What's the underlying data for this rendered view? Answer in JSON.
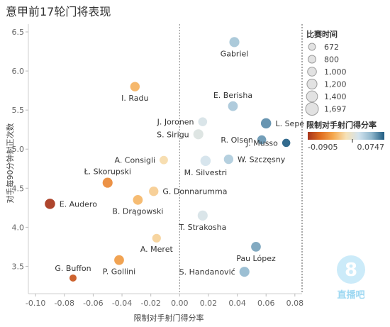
{
  "chart_data": {
    "type": "scatter",
    "title": "意甲前17轮门将表现",
    "xlabel": "限制对手射门得分率",
    "ylabel": "对手每90分钟射正次数",
    "xlim": [
      -0.105,
      0.085
    ],
    "ylim": [
      3.15,
      6.6
    ],
    "x_ticks": [
      -0.1,
      -0.08,
      -0.06,
      -0.04,
      -0.02,
      0.0,
      0.02,
      0.04,
      0.06,
      0.08
    ],
    "x_tick_labels": [
      "-0.10",
      "-0.08",
      "-0.06",
      "-0.04",
      "-0.02",
      "0.00",
      "0.02",
      "0.04",
      "0.06",
      "0.08"
    ],
    "y_ticks": [
      3.5,
      4.0,
      4.5,
      5.0,
      5.5,
      6.0,
      6.5
    ],
    "y_tick_labels": [
      "3.5",
      "4.0",
      "4.5",
      "5.0",
      "5.5",
      "6.0",
      "6.5"
    ],
    "grid": false,
    "reference_line_x": 0.0,
    "size_legend": {
      "title": "比赛时间",
      "placement": "top-right",
      "values": [
        672,
        800,
        1000,
        1200,
        1400,
        1697
      ],
      "labels": [
        "672",
        "800",
        "1,000",
        "1,200",
        "1,400",
        "1,697"
      ]
    },
    "color_legend": {
      "title": "限制对手射门得分率",
      "placement": "right",
      "min_label": "-0.0905",
      "max_label": "0.0747",
      "min": -0.0905,
      "max": 0.0747,
      "colors": [
        "#a6341b",
        "#e06d1f",
        "#f5a94f",
        "#f6e1b6",
        "#d2e3ee",
        "#8fb6cc",
        "#1f5c82"
      ]
    },
    "points": [
      {
        "name": "Gabriel",
        "x": 0.038,
        "y": 6.37,
        "minutes": 1200,
        "label_pos": "below"
      },
      {
        "name": "I. Radu",
        "x": -0.031,
        "y": 5.8,
        "minutes": 1100,
        "label_pos": "below"
      },
      {
        "name": "E. Berisha",
        "x": 0.037,
        "y": 5.55,
        "minutes": 1150,
        "label_pos": "above"
      },
      {
        "name": "J. Joronen",
        "x": 0.016,
        "y": 5.35,
        "minutes": 1000,
        "label_pos": "left"
      },
      {
        "name": "L. Sepe",
        "x": 0.06,
        "y": 5.33,
        "minutes": 1250,
        "label_pos": "right"
      },
      {
        "name": "S. Sirigu",
        "x": 0.013,
        "y": 5.19,
        "minutes": 1200,
        "label_pos": "left"
      },
      {
        "name": "R. Olsen",
        "x": 0.057,
        "y": 5.12,
        "minutes": 1000,
        "label_pos": "left"
      },
      {
        "name": "J. Musso",
        "x": 0.074,
        "y": 5.08,
        "minutes": 860,
        "label_pos": "left"
      },
      {
        "name": "W. Szczęsny",
        "x": 0.034,
        "y": 4.87,
        "minutes": 1100,
        "label_pos": "right"
      },
      {
        "name": "M. Silvestri",
        "x": 0.018,
        "y": 4.85,
        "minutes": 1250,
        "label_pos": "below"
      },
      {
        "name": "A. Consigli",
        "x": -0.011,
        "y": 4.86,
        "minutes": 900,
        "label_pos": "left"
      },
      {
        "name": "Ł. Skorupski",
        "x": -0.05,
        "y": 4.57,
        "minutes": 1200,
        "label_pos": "above"
      },
      {
        "name": "G. Donnarumma",
        "x": -0.018,
        "y": 4.46,
        "minutes": 1100,
        "label_pos": "right"
      },
      {
        "name": "B. Drągowski",
        "x": -0.029,
        "y": 4.35,
        "minutes": 1150,
        "label_pos": "below"
      },
      {
        "name": "E. Audero",
        "x": -0.09,
        "y": 4.3,
        "minutes": 1250,
        "label_pos": "right"
      },
      {
        "name": "T. Strakosha",
        "x": 0.016,
        "y": 4.15,
        "minutes": 1200,
        "label_pos": "below"
      },
      {
        "name": "A. Meret",
        "x": -0.016,
        "y": 3.86,
        "minutes": 950,
        "label_pos": "below"
      },
      {
        "name": "Pau López",
        "x": 0.053,
        "y": 3.75,
        "minutes": 1150,
        "label_pos": "below"
      },
      {
        "name": "G. Buffon",
        "x": -0.074,
        "y": 3.35,
        "minutes": 672,
        "label_pos": "above"
      },
      {
        "name": "P. Gollini",
        "x": -0.042,
        "y": 3.58,
        "minutes": 1150,
        "label_pos": "below"
      },
      {
        "name": "S. Handanović",
        "x": 0.045,
        "y": 3.43,
        "minutes": 1200,
        "label_pos": "left"
      }
    ]
  },
  "watermark": {
    "digit": "8",
    "text": "直播吧"
  }
}
